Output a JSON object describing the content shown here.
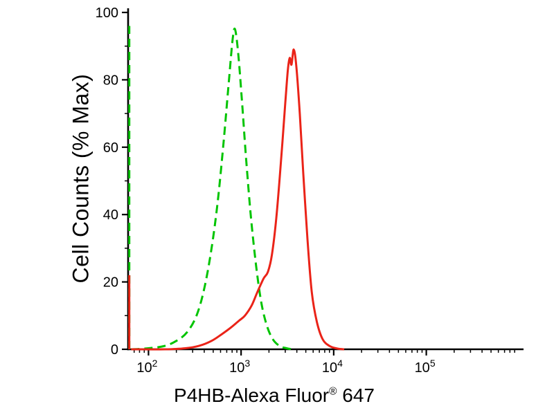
{
  "chart_data": {
    "type": "line",
    "title": "",
    "ylabel": "Cell Counts (% Max)",
    "xlabel_main": "P4HB-Alexa Fluor",
    "xlabel_registered": "®",
    "xlabel_suffix": " 647",
    "x_scale": "log",
    "x_range_log": [
      1.78,
      6.05
    ],
    "y_range": [
      0,
      100
    ],
    "x_major_tick_base": "10",
    "x_major_tick_exponents": [
      2,
      3,
      4,
      5
    ],
    "y_major_ticks": [
      0,
      20,
      40,
      60,
      80,
      100
    ],
    "y_minor_ticks": [
      10,
      30,
      50,
      70,
      90
    ],
    "grid": false,
    "legend": "none",
    "axis_color": "#000000",
    "background": "#ffffff",
    "series": [
      {
        "id": "green-dashed-control",
        "style": "dashed",
        "color": "#00c400",
        "edge_spike": {
          "x": 62,
          "height": 96
        },
        "points": [
          [
            65,
            0
          ],
          [
            100,
            0.3
          ],
          [
            150,
            1
          ],
          [
            200,
            2.5
          ],
          [
            260,
            5
          ],
          [
            330,
            10
          ],
          [
            400,
            18
          ],
          [
            480,
            30
          ],
          [
            560,
            44
          ],
          [
            650,
            62
          ],
          [
            740,
            80
          ],
          [
            810,
            92
          ],
          [
            860,
            95
          ],
          [
            930,
            88
          ],
          [
            1020,
            74
          ],
          [
            1130,
            57
          ],
          [
            1270,
            40
          ],
          [
            1450,
            25
          ],
          [
            1650,
            14
          ],
          [
            1900,
            7
          ],
          [
            2200,
            3
          ],
          [
            2600,
            1
          ],
          [
            3100,
            0.3
          ],
          [
            3600,
            0
          ]
        ]
      },
      {
        "id": "red-solid-sample",
        "style": "solid",
        "color": "#ea2318",
        "edge_spike": {
          "x": 62,
          "height": 22
        },
        "points": [
          [
            65,
            0
          ],
          [
            150,
            0
          ],
          [
            250,
            0.3
          ],
          [
            350,
            1
          ],
          [
            480,
            2.5
          ],
          [
            620,
            4.5
          ],
          [
            780,
            6.5
          ],
          [
            950,
            8.5
          ],
          [
            1100,
            10
          ],
          [
            1300,
            13
          ],
          [
            1500,
            17
          ],
          [
            1750,
            21
          ],
          [
            1950,
            23
          ],
          [
            2150,
            28
          ],
          [
            2400,
            39
          ],
          [
            2700,
            56
          ],
          [
            3000,
            73
          ],
          [
            3200,
            83
          ],
          [
            3350,
            86.5
          ],
          [
            3500,
            84.5
          ],
          [
            3700,
            89
          ],
          [
            3950,
            84
          ],
          [
            4300,
            70
          ],
          [
            4700,
            52
          ],
          [
            5200,
            33
          ],
          [
            5800,
            17
          ],
          [
            6600,
            8
          ],
          [
            7600,
            3
          ],
          [
            9000,
            1
          ],
          [
            11000,
            0.2
          ],
          [
            13000,
            0
          ]
        ]
      }
    ]
  }
}
